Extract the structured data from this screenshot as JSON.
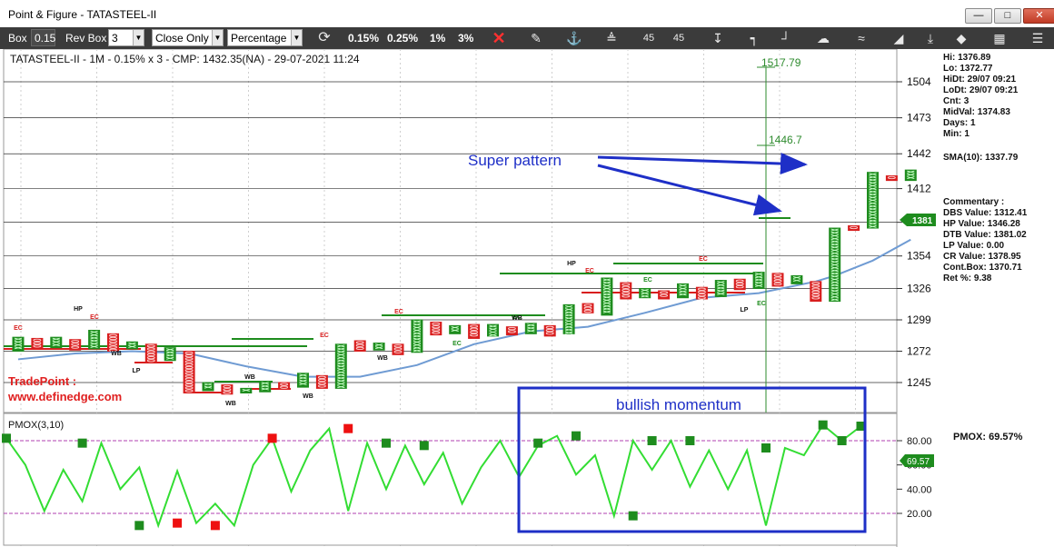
{
  "window": {
    "title": "Point & Figure - TATASTEEL-II",
    "min_icon": "minimize-icon",
    "max_icon": "maximize-icon",
    "close_icon": "close-icon"
  },
  "toolbar": {
    "box_label": "Box",
    "box_value": "0.15",
    "rev_label": "Rev Box",
    "rev_value": "3",
    "method_value": "Close Only",
    "scale_value": "Percentage",
    "pct": [
      "0.15%",
      "0.25%",
      "1%",
      "3%"
    ],
    "angle_up": "45",
    "angle_down": "45",
    "icons": [
      "refresh-icon",
      "delete-icon",
      "pencil-icon",
      "anchor-icon",
      "trendline-icon",
      "angle-icon",
      "arrow-down-icon",
      "bracket-icon",
      "bracket-right-icon",
      "megaphone-icon",
      "zigzag-icon",
      "triangle-icon",
      "arrow-down-bar-icon",
      "diamond-icon",
      "column-icon"
    ]
  },
  "header_text": "TATASTEEL-II - 1M - 0.15% x 3 - CMP: 1432.35(NA) - 29-07-2021 11:24",
  "info_panel": {
    "hi": "Hi: 1376.89",
    "lo": "Lo: 1372.77",
    "hidt": "HiDt: 29/07 09:21",
    "lodt": "LoDt: 29/07 09:21",
    "cnt": "Cnt: 3",
    "midval": "MidVal: 1374.83",
    "days": "Days: 1",
    "min": "Min: 1",
    "sma": "SMA(10): 1337.79",
    "commentary": "Commentary :",
    "dbs": "DBS Value:  1312.41",
    "hp": "HP Value:  1346.28",
    "dtb": "DTB Value:  1381.02",
    "lp": "LP Value: 0.00",
    "cr": "CR Value:  1378.95",
    "contbox": "Cont.Box: 1370.71",
    "ret": "Ret %: 9.38"
  },
  "price_badge": "1381",
  "watermark": {
    "line1": "TradePoint :",
    "line2": "www.definedge.com"
  },
  "annotations": {
    "super_pattern": "Super pattern",
    "bullish": "bullish momentum",
    "target_high": "1517.79",
    "target_low": "1446.7"
  },
  "pattern_labels": [
    "EC",
    "HP",
    "EC",
    "WB",
    "LP",
    "WB",
    "WB",
    "WB",
    "EC",
    "WB",
    "EC",
    "EC",
    "EC",
    "WB",
    "HP",
    "EC",
    "EC",
    "EC",
    "LP",
    "EC"
  ],
  "pmox": {
    "label": "PMOX(3,10)",
    "value_text": "PMOX: 69.57%",
    "badge": "69.57"
  },
  "colors": {
    "x_col": "#1e8c1e",
    "o_col": "#d81e1e",
    "sma": "#6f9bd3",
    "pmox_line": "#33dd33",
    "annot": "#1e2fc7",
    "target": "#2e8b2e"
  },
  "chart_data": [
    {
      "type": "line",
      "title": "TATASTEEL-II - 1M - 0.15% x 3 - CMP: 1432.35(NA) - 29-07-2021 11:24",
      "y_ticks": [
        1245,
        1272,
        1299,
        1326,
        1354,
        1383,
        1412,
        1442,
        1473,
        1504
      ],
      "ylim": [
        1220,
        1540
      ],
      "columns": [
        {
          "col": 0,
          "dir": "X",
          "low": 1272,
          "high": 1284
        },
        {
          "col": 1,
          "dir": "O",
          "low": 1274,
          "high": 1283
        },
        {
          "col": 2,
          "dir": "X",
          "low": 1275,
          "high": 1284
        },
        {
          "col": 3,
          "dir": "O",
          "low": 1273,
          "high": 1282
        },
        {
          "col": 4,
          "dir": "X",
          "low": 1274,
          "high": 1290
        },
        {
          "col": 5,
          "dir": "O",
          "low": 1272,
          "high": 1287
        },
        {
          "col": 6,
          "dir": "X",
          "low": 1274,
          "high": 1280
        },
        {
          "col": 7,
          "dir": "O",
          "low": 1263,
          "high": 1278
        },
        {
          "col": 8,
          "dir": "X",
          "low": 1264,
          "high": 1275
        },
        {
          "col": 9,
          "dir": "O",
          "low": 1236,
          "high": 1272
        },
        {
          "col": 10,
          "dir": "X",
          "low": 1238,
          "high": 1245
        },
        {
          "col": 11,
          "dir": "O",
          "low": 1235,
          "high": 1243
        },
        {
          "col": 12,
          "dir": "X",
          "low": 1236,
          "high": 1240
        },
        {
          "col": 13,
          "dir": "X",
          "low": 1237,
          "high": 1246
        },
        {
          "col": 14,
          "dir": "O",
          "low": 1240,
          "high": 1245
        },
        {
          "col": 15,
          "dir": "X",
          "low": 1241,
          "high": 1253
        },
        {
          "col": 16,
          "dir": "O",
          "low": 1240,
          "high": 1251
        },
        {
          "col": 17,
          "dir": "X",
          "low": 1240,
          "high": 1278
        },
        {
          "col": 18,
          "dir": "O",
          "low": 1272,
          "high": 1281
        },
        {
          "col": 19,
          "dir": "X",
          "low": 1273,
          "high": 1279
        },
        {
          "col": 20,
          "dir": "O",
          "low": 1269,
          "high": 1278
        },
        {
          "col": 21,
          "dir": "X",
          "low": 1271,
          "high": 1299
        },
        {
          "col": 22,
          "dir": "O",
          "low": 1286,
          "high": 1297
        },
        {
          "col": 23,
          "dir": "X",
          "low": 1287,
          "high": 1294
        },
        {
          "col": 24,
          "dir": "O",
          "low": 1283,
          "high": 1295
        },
        {
          "col": 25,
          "dir": "X",
          "low": 1285,
          "high": 1295
        },
        {
          "col": 26,
          "dir": "O",
          "low": 1286,
          "high": 1293
        },
        {
          "col": 27,
          "dir": "X",
          "low": 1287,
          "high": 1296
        },
        {
          "col": 28,
          "dir": "O",
          "low": 1285,
          "high": 1294
        },
        {
          "col": 29,
          "dir": "X",
          "low": 1287,
          "high": 1312
        },
        {
          "col": 30,
          "dir": "O",
          "low": 1305,
          "high": 1313
        },
        {
          "col": 31,
          "dir": "X",
          "low": 1303,
          "high": 1335
        },
        {
          "col": 32,
          "dir": "O",
          "low": 1317,
          "high": 1331
        },
        {
          "col": 33,
          "dir": "X",
          "low": 1318,
          "high": 1326
        },
        {
          "col": 34,
          "dir": "O",
          "low": 1317,
          "high": 1324
        },
        {
          "col": 35,
          "dir": "X",
          "low": 1318,
          "high": 1330
        },
        {
          "col": 36,
          "dir": "O",
          "low": 1317,
          "high": 1327
        },
        {
          "col": 37,
          "dir": "X",
          "low": 1319,
          "high": 1333
        },
        {
          "col": 38,
          "dir": "O",
          "low": 1325,
          "high": 1334
        },
        {
          "col": 39,
          "dir": "X",
          "low": 1326,
          "high": 1340
        },
        {
          "col": 40,
          "dir": "O",
          "low": 1328,
          "high": 1339
        },
        {
          "col": 41,
          "dir": "X",
          "low": 1330,
          "high": 1337
        },
        {
          "col": 42,
          "dir": "O",
          "low": 1315,
          "high": 1332
        },
        {
          "col": 43,
          "dir": "X",
          "low": 1315,
          "high": 1378
        },
        {
          "col": 44,
          "dir": "O",
          "low": 1376,
          "high": 1380
        },
        {
          "col": 45,
          "dir": "X",
          "low": 1378,
          "high": 1426
        },
        {
          "col": 46,
          "dir": "O",
          "low": 1419,
          "high": 1423
        },
        {
          "col": 47,
          "dir": "X",
          "low": 1419,
          "high": 1428
        }
      ],
      "sma": [
        [
          0,
          1265
        ],
        [
          3,
          1270
        ],
        [
          6,
          1272
        ],
        [
          9,
          1270
        ],
        [
          12,
          1259
        ],
        [
          15,
          1250
        ],
        [
          18,
          1250
        ],
        [
          21,
          1260
        ],
        [
          24,
          1278
        ],
        [
          27,
          1289
        ],
        [
          30,
          1293
        ],
        [
          33,
          1305
        ],
        [
          36,
          1318
        ],
        [
          39,
          1322
        ],
        [
          42,
          1332
        ],
        [
          43,
          1337
        ],
        [
          45,
          1350
        ],
        [
          47,
          1368
        ]
      ]
    },
    {
      "type": "line",
      "title": "PMOX(3,10)",
      "y_ticks": [
        20.0,
        40.0,
        60.0,
        80.0
      ],
      "ylim": [
        0,
        100
      ],
      "x": [
        0,
        1,
        2,
        3,
        4,
        5,
        6,
        7,
        8,
        9,
        10,
        11,
        12,
        13,
        14,
        15,
        16,
        17,
        18,
        19,
        20,
        21,
        22,
        23,
        24,
        25,
        26,
        27,
        28,
        29,
        30,
        31,
        32,
        33,
        34,
        35,
        36,
        37,
        38,
        39,
        40,
        41,
        42,
        43,
        44,
        45
      ],
      "values": [
        82,
        60,
        22,
        56,
        30,
        78,
        40,
        58,
        10,
        55,
        12,
        28,
        10,
        60,
        82,
        38,
        72,
        90,
        22,
        78,
        40,
        76,
        44,
        70,
        28,
        58,
        80,
        50,
        76,
        84,
        52,
        68,
        18,
        80,
        56,
        80,
        42,
        72,
        40,
        72,
        10,
        74,
        68,
        93,
        80,
        92
      ],
      "markers": [
        {
          "x": 0,
          "value": 82,
          "color": "green"
        },
        {
          "x": 4,
          "value": 78,
          "color": "green"
        },
        {
          "x": 7,
          "value": 10,
          "color": "green"
        },
        {
          "x": 9,
          "value": 12,
          "color": "red"
        },
        {
          "x": 11,
          "value": 10,
          "color": "red"
        },
        {
          "x": 14,
          "value": 82,
          "color": "red"
        },
        {
          "x": 18,
          "value": 90,
          "color": "red"
        },
        {
          "x": 20,
          "value": 78,
          "color": "green"
        },
        {
          "x": 22,
          "value": 76,
          "color": "green"
        },
        {
          "x": 28,
          "value": 78,
          "color": "green"
        },
        {
          "x": 30,
          "value": 84,
          "color": "green"
        },
        {
          "x": 33,
          "value": 18,
          "color": "green"
        },
        {
          "x": 34,
          "value": 80,
          "color": "green"
        },
        {
          "x": 36,
          "value": 80,
          "color": "green"
        },
        {
          "x": 40,
          "value": 74,
          "color": "green"
        },
        {
          "x": 43,
          "value": 93,
          "color": "green"
        },
        {
          "x": 44,
          "value": 80,
          "color": "green"
        },
        {
          "x": 45,
          "value": 92,
          "color": "green"
        }
      ]
    }
  ]
}
